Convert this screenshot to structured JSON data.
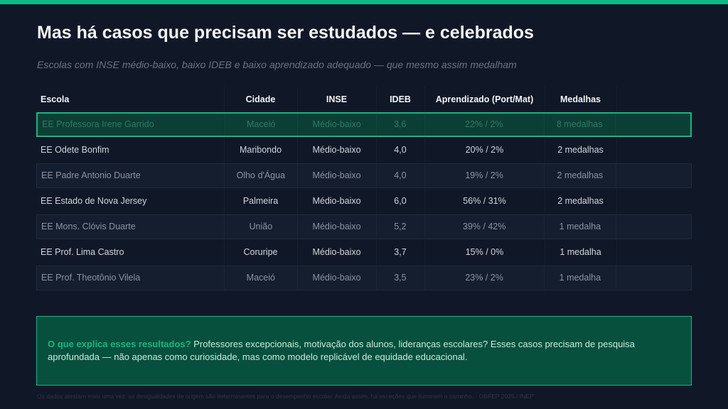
{
  "slide": {
    "accent_color": "#10b981",
    "background_color": "#101828",
    "title": "Mas há casos que precisam ser estudados — e celebrados",
    "subtitle": "Escolas com INSE médio-baixo, baixo IDEB e baixo aprendizado adequado — que mesmo assim medalham"
  },
  "table": {
    "headers": {
      "escola": "Escola",
      "cidade": "Cidade",
      "inse": "INSE",
      "ideb": "IDEB",
      "aprendizado": "Aprendizado (Port/Mat)",
      "medalhas": "Medalhas"
    },
    "rows": [
      {
        "escola": "EE Professora Irene Garrido",
        "cidade": "Maceió",
        "inse": "Médio-baixo",
        "ideb": "3,6",
        "aprendizado": "22% / 2%",
        "medalhas": "8 medalhas",
        "highlighted": true
      },
      {
        "escola": "EE Odete Bonfim",
        "cidade": "Maribondo",
        "inse": "Médio-baixo",
        "ideb": "4,0",
        "aprendizado": "20% / 2%",
        "medalhas": "2 medalhas"
      },
      {
        "escola": "EE Padre Antonio Duarte",
        "cidade": "Olho d'Água",
        "inse": "Médio-baixo",
        "ideb": "4,0",
        "aprendizado": "19% / 2%",
        "medalhas": "2 medalhas"
      },
      {
        "escola": "EE Estado de Nova Jersey",
        "cidade": "Palmeira",
        "inse": "Médio-baixo",
        "ideb": "6,0",
        "aprendizado": "56% / 31%",
        "medalhas": "2 medalhas"
      },
      {
        "escola": "EE Mons. Clóvis Duarte",
        "cidade": "União",
        "inse": "Médio-baixo",
        "ideb": "5,2",
        "aprendizado": "39% / 42%",
        "medalhas": "1 medalha"
      },
      {
        "escola": "EE Prof. Lima Castro",
        "cidade": "Coruripe",
        "inse": "Médio-baixo",
        "ideb": "3,7",
        "aprendizado": "15% / 0%",
        "medalhas": "1 medalha"
      },
      {
        "escola": "EE Prof. Theotônio Vilela",
        "cidade": "Maceió",
        "inse": "Médio-baixo",
        "ideb": "3,5",
        "aprendizado": "23% / 2%",
        "medalhas": "1 medalha"
      }
    ]
  },
  "callout": {
    "lead": "O que explica esses resultados?",
    "body": " Professores excepcionais, motivação dos alunos, lideranças escolares? Esses casos precisam de pesquisa aprofundada — não apenas como curiosidade, mas como modelo replicável de equidade educacional."
  },
  "footer": {
    "text": "Os dados atestam mais uma vez: as desigualdades de origem são determinantes para o desempenho escolar. Ainda assim, há exceções que iluminam o caminho.  · OBFEP 2025 / INEP"
  }
}
